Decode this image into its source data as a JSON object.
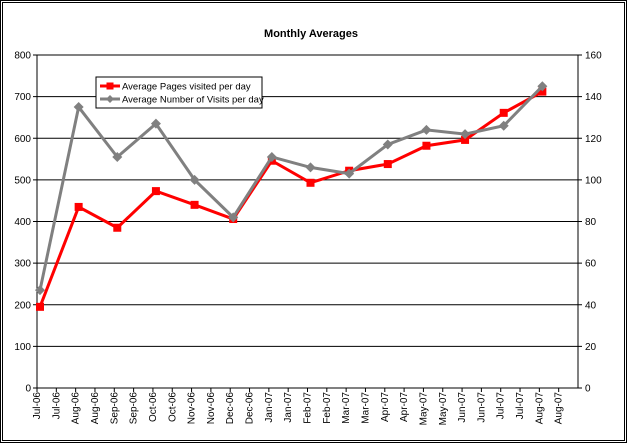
{
  "chart_data": {
    "type": "line",
    "title": "Monthly Averages",
    "xticks": [
      "Jul-06",
      "Jul-06",
      "Aug-06",
      "Aug-06",
      "Sep-06",
      "Sep-06",
      "Oct-06",
      "Oct-06",
      "Nov-06",
      "Nov-06",
      "Dec-06",
      "Dec-06",
      "Jan-07",
      "Jan-07",
      "Feb-07",
      "Feb-07",
      "Mar-07",
      "Mar-07",
      "Apr-07",
      "Apr-07",
      "May-07",
      "May-07",
      "Jun-07",
      "Jun-07",
      "Jul-07",
      "Jul-07",
      "Aug-07",
      "Aug-07"
    ],
    "series": [
      {
        "name": "Average Pages visited per day",
        "color": "#ff0000",
        "marker": "square",
        "values": [
          195,
          435,
          385,
          473,
          440,
          406,
          546,
          493,
          522,
          538,
          582,
          596,
          661,
          712
        ]
      },
      {
        "name": "Average Number of Visits per day",
        "color": "#808080",
        "marker": "diamond",
        "axis": "y2",
        "values": [
          47,
          135,
          111,
          127,
          100,
          82,
          111,
          106,
          103,
          117,
          124,
          122,
          126,
          145
        ]
      }
    ],
    "ylim": [
      0,
      800
    ],
    "yticks": [
      0,
      100,
      200,
      300,
      400,
      500,
      600,
      700,
      800
    ],
    "y2lim": [
      0,
      160
    ],
    "y2ticks": [
      0,
      20,
      40,
      60,
      80,
      100,
      120,
      140,
      160
    ],
    "grid": true,
    "legend": "top-left"
  }
}
